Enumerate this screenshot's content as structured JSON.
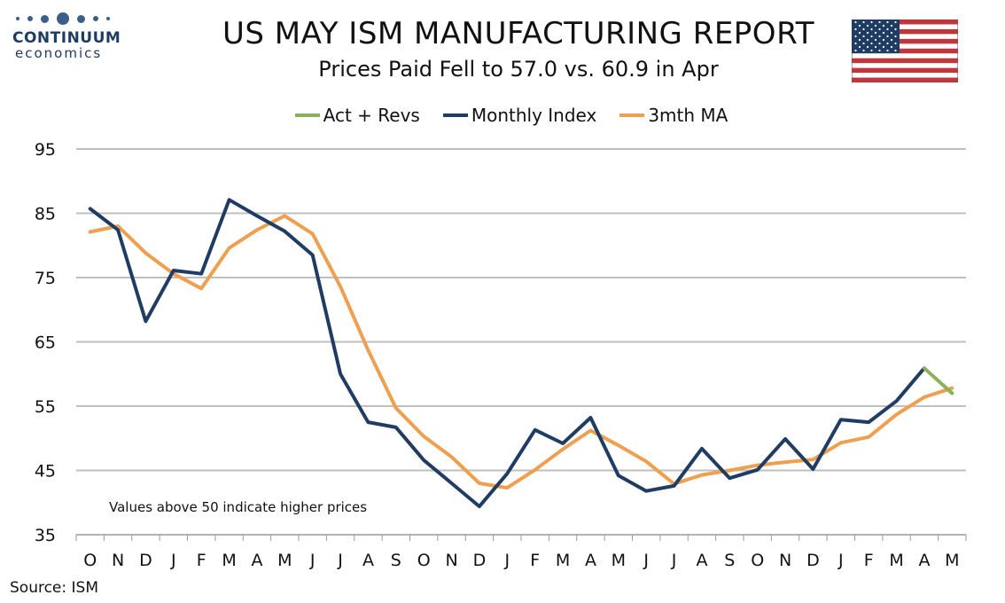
{
  "logo": {
    "main": "CONTINUUM",
    "sub": "economics"
  },
  "title": "US MAY ISM MANUFACTURING REPORT",
  "subtitle": "Prices Paid Fell to 57.0 vs. 60.9 in Apr",
  "note": "Values above 50 indicate higher prices",
  "source": "Source: ISM",
  "colors": {
    "act_revs": "#8cb05a",
    "monthly": "#1f3d63",
    "ma3": "#ef9f50",
    "grid": "#bfbfbf"
  },
  "chart_data": {
    "type": "line",
    "categories": [
      "O",
      "N",
      "D",
      "J",
      "F",
      "M",
      "A",
      "M",
      "J",
      "J",
      "A",
      "S",
      "O",
      "N",
      "D",
      "J",
      "F",
      "M",
      "A",
      "M",
      "J",
      "J",
      "A",
      "S",
      "O",
      "N",
      "D",
      "J",
      "F",
      "M",
      "A",
      "M"
    ],
    "yticks": [
      35,
      45,
      55,
      65,
      75,
      85,
      95
    ],
    "ylim": [
      35,
      95
    ],
    "grid": true,
    "legend_position": "top",
    "series": [
      {
        "name": "Act + Revs",
        "color": "#8cb05a",
        "values": [
          null,
          null,
          null,
          null,
          null,
          null,
          null,
          null,
          null,
          null,
          null,
          null,
          null,
          null,
          null,
          null,
          null,
          null,
          null,
          null,
          null,
          null,
          null,
          null,
          null,
          null,
          null,
          null,
          null,
          null,
          60.9,
          57.0
        ]
      },
      {
        "name": "Monthly Index",
        "color": "#1f3d63",
        "values": [
          85.7,
          82.4,
          68.2,
          76.1,
          75.6,
          87.1,
          84.6,
          82.2,
          78.5,
          60.0,
          52.5,
          51.7,
          46.6,
          43.0,
          39.4,
          44.5,
          51.3,
          49.2,
          53.2,
          44.2,
          41.8,
          42.6,
          48.4,
          43.8,
          45.1,
          49.9,
          45.2,
          52.9,
          52.5,
          55.8,
          60.9,
          null
        ]
      },
      {
        "name": "3mth MA",
        "color": "#ef9f50",
        "values": [
          82.1,
          83.0,
          78.8,
          75.6,
          73.3,
          79.6,
          82.4,
          84.6,
          81.8,
          73.6,
          63.7,
          54.7,
          50.3,
          47.1,
          43.0,
          42.3,
          45.1,
          48.3,
          51.2,
          48.9,
          46.4,
          42.9,
          44.3,
          45.0,
          45.8,
          46.3,
          46.7,
          49.3,
          50.2,
          53.7,
          56.4,
          57.8
        ]
      }
    ]
  }
}
